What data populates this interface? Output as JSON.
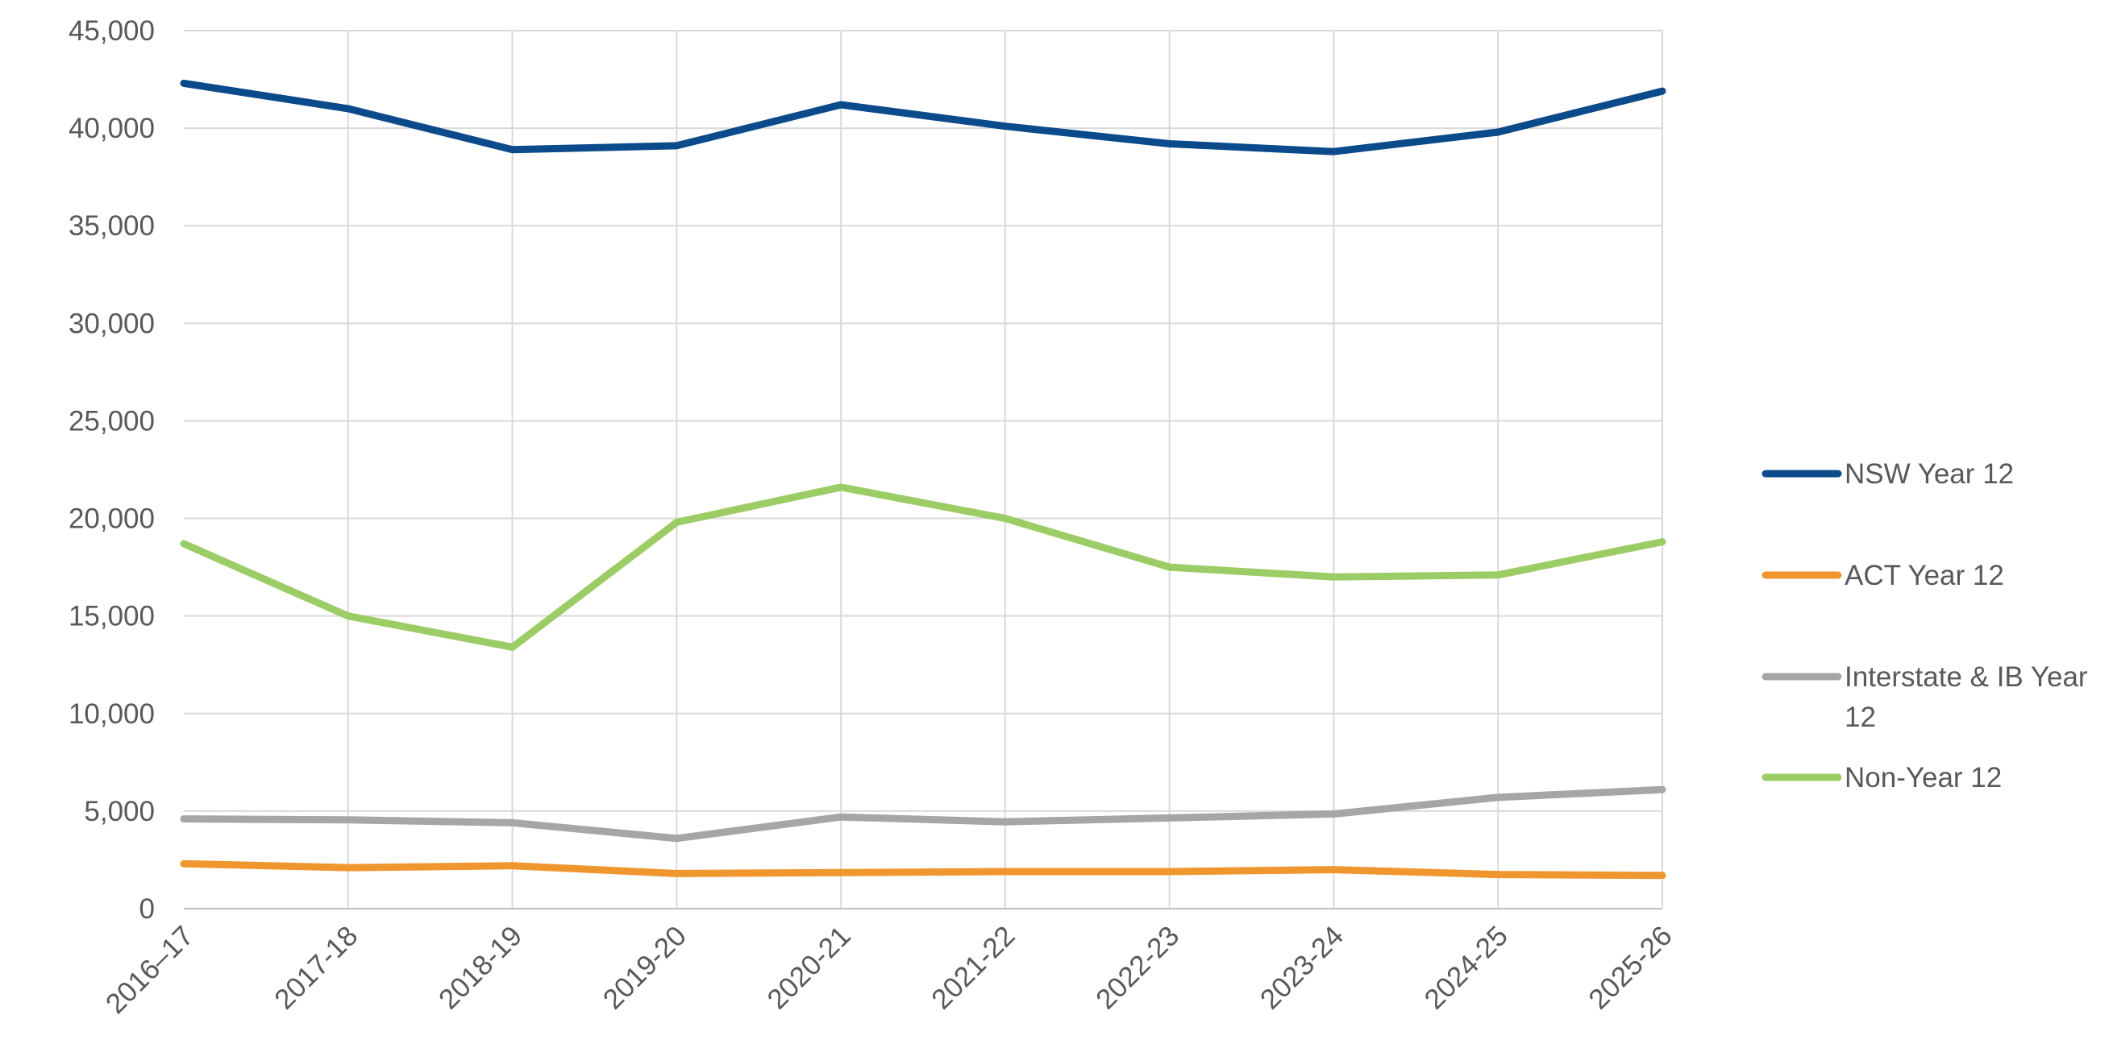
{
  "chart_data": {
    "type": "line",
    "categories": [
      "2016–17",
      "2017-18",
      "2018-19",
      "2019-20",
      "2020-21",
      "2021-22",
      "2022-23",
      "2023-24",
      "2024-25",
      "2025-26"
    ],
    "ylim": [
      0,
      45000
    ],
    "yticks": [
      0,
      5000,
      10000,
      15000,
      20000,
      25000,
      30000,
      35000,
      40000,
      45000
    ],
    "ytick_labels": [
      "0",
      "5,000",
      "10,000",
      "15,000",
      "20,000",
      "25,000",
      "30,000",
      "35,000",
      "40,000",
      "45,000"
    ],
    "grid": true,
    "legend_position": "right",
    "series": [
      {
        "name": "NSW Year 12",
        "color": "#0B4A8B",
        "values": [
          42300,
          41000,
          38900,
          39100,
          41200,
          40100,
          39200,
          38800,
          39800,
          41900
        ]
      },
      {
        "name": "ACT Year 12",
        "color": "#F0962F",
        "values": [
          2300,
          2100,
          2200,
          1800,
          1850,
          1900,
          1900,
          2000,
          1750,
          1700
        ]
      },
      {
        "name": "Interstate & IB Year 12",
        "color": "#A6A6A6",
        "values": [
          4600,
          4550,
          4400,
          3600,
          4700,
          4450,
          4650,
          4850,
          5700,
          6100
        ]
      },
      {
        "name": "Non-Year 12",
        "color": "#9CCC65",
        "values": [
          18700,
          15000,
          13400,
          19800,
          21600,
          20000,
          17500,
          17000,
          17100,
          18800
        ]
      }
    ],
    "legend_wrapped_lines": {
      "Interstate & IB Year 12": [
        "Interstate & IB Year",
        "12"
      ]
    }
  }
}
